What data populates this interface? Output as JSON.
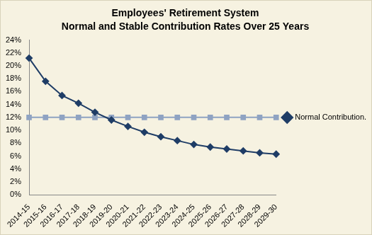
{
  "chart_data": {
    "type": "line",
    "title": "Employees' Retirement System",
    "subtitle": "Normal and Stable Contribution Rates Over 25 Years",
    "categories": [
      "2014-15",
      "2015-16",
      "2016-17",
      "2017-18",
      "2018-19",
      "2019-20",
      "2020-21",
      "2021-22",
      "2022-23",
      "2023-24",
      "2024-25",
      "2025-26",
      "2026-27",
      "2027-28",
      "2028-29",
      "2029-30"
    ],
    "series": [
      {
        "name": "Normal Contribution...",
        "color": "#1f3d66",
        "marker": "diamond",
        "line_style": "solid",
        "values": [
          21.2,
          17.6,
          15.4,
          14.2,
          12.8,
          11.6,
          10.6,
          9.7,
          9.0,
          8.4,
          7.8,
          7.4,
          7.1,
          6.8,
          6.5,
          6.3
        ]
      },
      {
        "color": "#8fa3c2",
        "marker": "square",
        "line_style": "solid",
        "values": [
          12,
          12,
          12,
          12,
          12,
          12,
          12,
          12,
          12,
          12,
          12,
          12,
          12,
          12,
          12,
          12
        ]
      }
    ],
    "ylim": [
      0,
      24
    ],
    "yticks": [
      {
        "value": 0,
        "label": "0%"
      },
      {
        "value": 2,
        "label": "2%"
      },
      {
        "value": 4,
        "label": "4%"
      },
      {
        "value": 6,
        "label": "6%"
      },
      {
        "value": 8,
        "label": "8%"
      },
      {
        "value": 10,
        "label": "10%"
      },
      {
        "value": 12,
        "label": "12%"
      },
      {
        "value": 14,
        "label": "14%"
      },
      {
        "value": 16,
        "label": "16%"
      },
      {
        "value": 18,
        "label": "18%"
      },
      {
        "value": 20,
        "label": "20%"
      },
      {
        "value": 22,
        "label": "22%"
      },
      {
        "value": 24,
        "label": "24%"
      }
    ],
    "grid": false,
    "legend": "right"
  }
}
